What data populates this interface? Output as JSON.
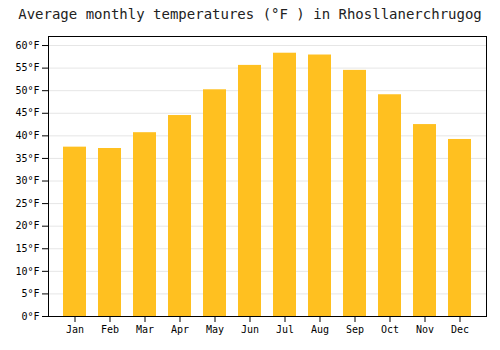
{
  "chart_data": {
    "type": "bar",
    "title": "Average monthly temperatures (°F ) in Rhosllanerchrugog",
    "categories": [
      "Jan",
      "Feb",
      "Mar",
      "Apr",
      "May",
      "Jun",
      "Jul",
      "Aug",
      "Sep",
      "Oct",
      "Nov",
      "Dec"
    ],
    "values": [
      37.5,
      37.2,
      40.7,
      44.5,
      50.2,
      55.6,
      58.3,
      57.9,
      54.5,
      49.1,
      42.5,
      39.2
    ],
    "color": "#FFC020",
    "ylim": [
      0,
      62
    ],
    "yticks": [
      {
        "value": 0,
        "label": "0°F"
      },
      {
        "value": 5,
        "label": "5°F"
      },
      {
        "value": 10,
        "label": "10°F"
      },
      {
        "value": 15,
        "label": "15°F"
      },
      {
        "value": 20,
        "label": "20°F"
      },
      {
        "value": 25,
        "label": "25°F"
      },
      {
        "value": 30,
        "label": "30°F"
      },
      {
        "value": 35,
        "label": "35°F"
      },
      {
        "value": 40,
        "label": "40°F"
      },
      {
        "value": 45,
        "label": "45°F"
      },
      {
        "value": 50,
        "label": "50°F"
      },
      {
        "value": 55,
        "label": "55°F"
      },
      {
        "value": 60,
        "label": "60°F"
      }
    ],
    "grid": true
  }
}
